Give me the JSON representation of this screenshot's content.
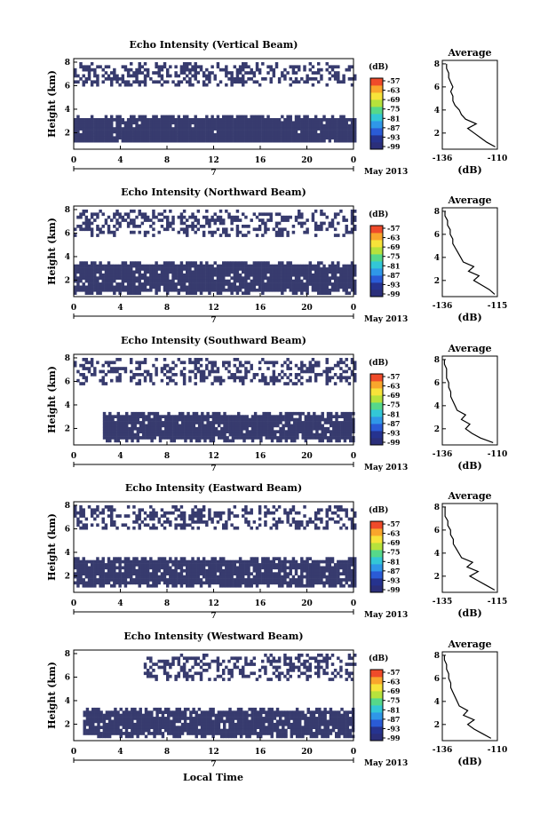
{
  "figure": {
    "xlabel": "Local Time",
    "month_label": "May 2013",
    "day_label": "7",
    "ylabel": "Height (km)",
    "colorbar_unit": "(dB)",
    "colorbar_ticks": [
      "-57",
      "-63",
      "-69",
      "-75",
      "-81",
      "-87",
      "-93",
      "-99"
    ],
    "colorbar_colors": [
      "#2b2f7a",
      "#26338f",
      "#2a5bd6",
      "#2f97e8",
      "#33c7d6",
      "#56d88a",
      "#b6e23c",
      "#f7e33a",
      "#f9a62c",
      "#ef4b2a"
    ],
    "average_title": "Average",
    "average_xlabel": "(dB)",
    "fill_color": "#373b6e"
  },
  "chart_data": [
    {
      "type": "heatmap",
      "title": "Echo Intensity (Vertical Beam)",
      "xlabel": "Local Time",
      "ylabel": "Height (km)",
      "x_ticks": [
        "0",
        "4",
        "8",
        "12",
        "16",
        "20",
        "0"
      ],
      "xlim": [
        0,
        24
      ],
      "y_ticks": [
        "2",
        "4",
        "6",
        "8"
      ],
      "ylim": [
        0.6,
        8.3
      ],
      "colorbar_range": [
        -99,
        -57
      ],
      "echo_bands": [
        {
          "from_km": 1.2,
          "to_km": 3.5,
          "start_h": 0,
          "end_h": 24,
          "density": 0.97
        },
        {
          "from_km": 6.2,
          "to_km": 8.0,
          "start_h": 0,
          "end_h": 24,
          "density": 0.45
        }
      ],
      "average": {
        "title": "Average",
        "xlabel": "(dB)",
        "x_ticks": [
          "-136",
          "-110"
        ],
        "xlim": [
          -136,
          -110
        ],
        "y_ticks": [
          "2",
          "4",
          "6",
          "8"
        ],
        "ylim": [
          0.6,
          8.3
        ],
        "height_km": [
          0.8,
          1.2,
          1.6,
          2.0,
          2.4,
          2.8,
          3.2,
          3.6,
          4.0,
          4.4,
          4.8,
          5.2,
          5.6,
          6.0,
          6.4,
          6.8,
          7.2,
          7.6,
          8.0
        ],
        "value_db": [
          -111,
          -115,
          -118,
          -121,
          -124,
          -120,
          -125,
          -127,
          -128,
          -130,
          -131,
          -131,
          -132,
          -131,
          -132,
          -133,
          -133,
          -134,
          -134
        ]
      }
    },
    {
      "type": "heatmap",
      "title": "Echo Intensity (Northward Beam)",
      "xlabel": "Local Time",
      "ylabel": "Height (km)",
      "x_ticks": [
        "0",
        "4",
        "8",
        "12",
        "16",
        "20",
        "0"
      ],
      "xlim": [
        0,
        24
      ],
      "y_ticks": [
        "2",
        "4",
        "6",
        "8"
      ],
      "ylim": [
        0.6,
        8.3
      ],
      "colorbar_range": [
        -99,
        -57
      ],
      "echo_bands": [
        {
          "from_km": 1.0,
          "to_km": 3.6,
          "start_h": 0,
          "end_h": 24,
          "density": 0.95
        },
        {
          "from_km": 5.8,
          "to_km": 8.0,
          "start_h": 0,
          "end_h": 24,
          "density": 0.4
        }
      ],
      "average": {
        "title": "Average",
        "xlabel": "(dB)",
        "x_ticks": [
          "-136",
          "-115"
        ],
        "xlim": [
          -136,
          -115
        ],
        "y_ticks": [
          "2",
          "4",
          "6",
          "8"
        ],
        "ylim": [
          0.6,
          8.3
        ],
        "height_km": [
          0.8,
          1.2,
          1.6,
          2.0,
          2.4,
          2.8,
          3.2,
          3.6,
          4.0,
          4.4,
          4.8,
          5.2,
          5.6,
          6.0,
          6.4,
          6.8,
          7.2,
          7.6,
          8.0
        ],
        "value_db": [
          -116,
          -118,
          -121,
          -124,
          -122,
          -126,
          -124,
          -128,
          -129,
          -130,
          -131,
          -132,
          -132,
          -133,
          -133,
          -134,
          -134,
          -135,
          -135
        ]
      }
    },
    {
      "type": "heatmap",
      "title": "Echo Intensity (Southward Beam)",
      "xlabel": "Local Time",
      "ylabel": "Height (km)",
      "x_ticks": [
        "0",
        "4",
        "8",
        "12",
        "16",
        "20",
        "0"
      ],
      "xlim": [
        0,
        24
      ],
      "y_ticks": [
        "2",
        "4",
        "6",
        "8"
      ],
      "ylim": [
        0.6,
        8.3
      ],
      "colorbar_range": [
        -99,
        -57
      ],
      "echo_bands": [
        {
          "from_km": 1.0,
          "to_km": 3.4,
          "start_h": 2.5,
          "end_h": 24,
          "density": 0.92
        },
        {
          "from_km": 5.9,
          "to_km": 8.0,
          "start_h": 0,
          "end_h": 24,
          "density": 0.42
        }
      ],
      "average": {
        "title": "Average",
        "xlabel": "(dB)",
        "x_ticks": [
          "-136",
          "-110"
        ],
        "xlim": [
          -136,
          -110
        ],
        "y_ticks": [
          "2",
          "4",
          "6",
          "8"
        ],
        "ylim": [
          0.6,
          8.3
        ],
        "height_km": [
          0.8,
          1.2,
          1.6,
          2.0,
          2.4,
          2.8,
          3.2,
          3.6,
          4.0,
          4.4,
          4.8,
          5.2,
          5.6,
          6.0,
          6.4,
          6.8,
          7.2,
          7.6,
          8.0
        ],
        "value_db": [
          -112,
          -118,
          -122,
          -125,
          -123,
          -127,
          -125,
          -129,
          -130,
          -131,
          -132,
          -132,
          -133,
          -133,
          -134,
          -134,
          -134,
          -135,
          -135
        ]
      }
    },
    {
      "type": "heatmap",
      "title": "Echo Intensity (Eastward Beam)",
      "xlabel": "Local Time",
      "ylabel": "Height (km)",
      "x_ticks": [
        "0",
        "4",
        "8",
        "12",
        "16",
        "20",
        "0"
      ],
      "xlim": [
        0,
        24
      ],
      "y_ticks": [
        "2",
        "4",
        "6",
        "8"
      ],
      "ylim": [
        0.6,
        8.3
      ],
      "colorbar_range": [
        -99,
        -57
      ],
      "echo_bands": [
        {
          "from_km": 1.2,
          "to_km": 3.6,
          "start_h": 0,
          "end_h": 24,
          "density": 0.93
        },
        {
          "from_km": 6.0,
          "to_km": 8.0,
          "start_h": 0,
          "end_h": 24,
          "density": 0.4
        }
      ],
      "average": {
        "title": "Average",
        "xlabel": "(dB)",
        "x_ticks": [
          "-135",
          "-115"
        ],
        "xlim": [
          -135,
          -115
        ],
        "y_ticks": [
          "2",
          "4",
          "6",
          "8"
        ],
        "ylim": [
          0.6,
          8.3
        ],
        "height_km": [
          0.8,
          1.2,
          1.6,
          2.0,
          2.4,
          2.8,
          3.2,
          3.6,
          4.0,
          4.4,
          4.8,
          5.2,
          5.6,
          6.0,
          6.4,
          6.8,
          7.2,
          7.6,
          8.0
        ],
        "value_db": [
          -116,
          -119,
          -122,
          -125,
          -122,
          -126,
          -124,
          -128,
          -129,
          -130,
          -131,
          -131,
          -132,
          -132,
          -133,
          -133,
          -134,
          -134,
          -134
        ]
      }
    },
    {
      "type": "heatmap",
      "title": "Echo Intensity (Westward Beam)",
      "xlabel": "Local Time",
      "ylabel": "Height (km)",
      "x_ticks": [
        "0",
        "4",
        "8",
        "12",
        "16",
        "20",
        "0"
      ],
      "xlim": [
        0,
        24
      ],
      "y_ticks": [
        "2",
        "4",
        "6",
        "8"
      ],
      "ylim": [
        0.6,
        8.3
      ],
      "colorbar_range": [
        -99,
        -57
      ],
      "echo_bands": [
        {
          "from_km": 1.0,
          "to_km": 3.4,
          "start_h": 0.8,
          "end_h": 24,
          "density": 0.92
        },
        {
          "from_km": 5.8,
          "to_km": 8.0,
          "start_h": 6,
          "end_h": 24,
          "density": 0.42
        }
      ],
      "average": {
        "title": "Average",
        "xlabel": "(dB)",
        "x_ticks": [
          "-136",
          "-110"
        ],
        "xlim": [
          -136,
          -110
        ],
        "y_ticks": [
          "2",
          "4",
          "6",
          "8"
        ],
        "ylim": [
          0.6,
          8.3
        ],
        "height_km": [
          0.8,
          1.2,
          1.6,
          2.0,
          2.4,
          2.8,
          3.2,
          3.6,
          4.0,
          4.4,
          4.8,
          5.2,
          5.6,
          6.0,
          6.4,
          6.8,
          7.2,
          7.6,
          8.0
        ],
        "value_db": [
          -113,
          -117,
          -121,
          -124,
          -121,
          -126,
          -124,
          -128,
          -129,
          -130,
          -131,
          -132,
          -132,
          -133,
          -133,
          -134,
          -134,
          -135,
          -135
        ]
      }
    }
  ]
}
